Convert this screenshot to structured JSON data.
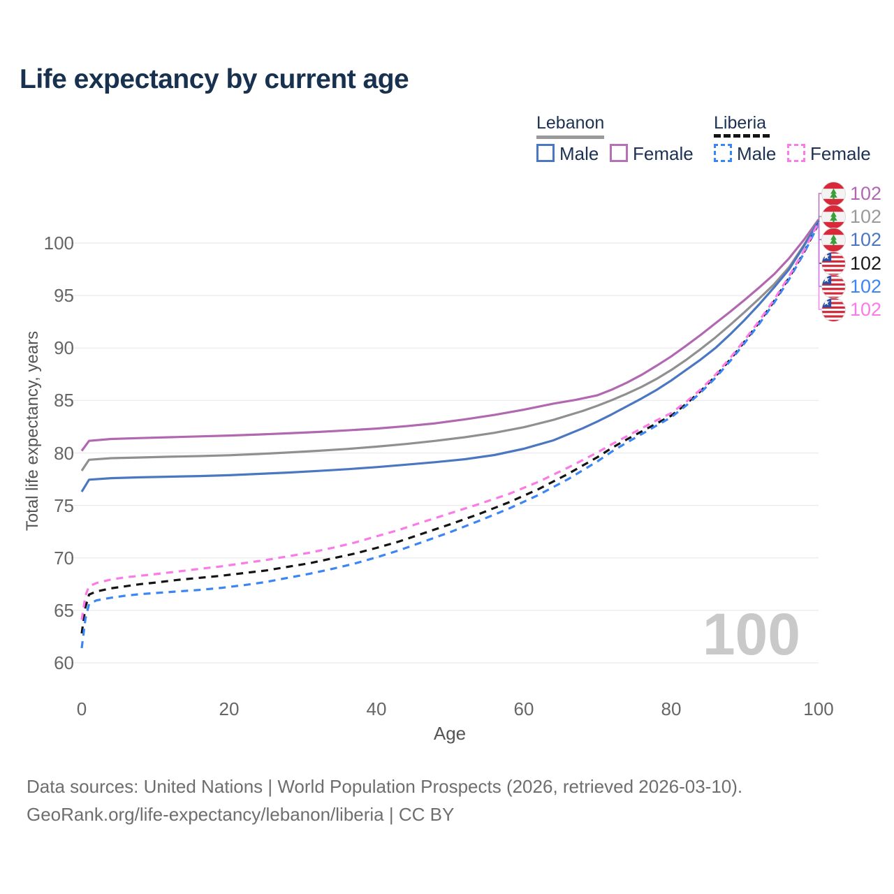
{
  "title": "Life expectancy by current age",
  "legend": {
    "groups": [
      {
        "country": "Lebanon",
        "line_style": "solid",
        "items": [
          {
            "label": "Male",
            "color": "#4a76c2"
          },
          {
            "label": "Female",
            "color": "#b671b6"
          }
        ]
      },
      {
        "country": "Liberia",
        "line_style": "dashed",
        "items": [
          {
            "label": "Male",
            "color": "#3c85f4"
          },
          {
            "label": "Female",
            "color": "#fb7ae8"
          }
        ]
      }
    ]
  },
  "end_labels": [
    {
      "series": "Lebanon Female",
      "flag": "lebanon",
      "value": "102",
      "color": "#b168b1"
    },
    {
      "series": "Lebanon Both sexes",
      "flag": "lebanon",
      "value": "102",
      "color": "#9a9a9a"
    },
    {
      "series": "Lebanon Male",
      "flag": "lebanon",
      "value": "102",
      "color": "#4a76c2"
    },
    {
      "series": "Liberia Both sexes",
      "flag": "liberia",
      "value": "102",
      "color": "#1a1a1a"
    },
    {
      "series": "Liberia Male",
      "flag": "liberia",
      "value": "102",
      "color": "#3c85f4"
    },
    {
      "series": "Liberia Female",
      "flag": "liberia",
      "value": "102",
      "color": "#fb7ae8"
    }
  ],
  "watermark": "100",
  "footer": {
    "line1": "Data sources: United Nations | World Population Prospects (2026, retrieved 2026-03-10).",
    "line2": "GeoRank.org/life-expectancy/lebanon/liberia | CC BY"
  },
  "chart_data": {
    "type": "line",
    "title": "Life expectancy by current age",
    "xlabel": "Age",
    "ylabel": "Total life expectancy, years",
    "xlim": [
      0,
      100
    ],
    "ylim": [
      60,
      102.5
    ],
    "xticks": [
      0,
      20,
      40,
      60,
      80,
      100
    ],
    "yticks": [
      100,
      95,
      90,
      85,
      80,
      75,
      70,
      65,
      60
    ],
    "grid": "horizontal",
    "gridline_color": "#ebebeb",
    "series": [
      {
        "id": "lebanon-female",
        "name": "Lebanon Female",
        "country": "Lebanon",
        "sex": "Female",
        "color": "#b168b1",
        "dashed": false,
        "end_value": 102,
        "points": [
          [
            0,
            80.2
          ],
          [
            1,
            81.15
          ],
          [
            4,
            81.33
          ],
          [
            8,
            81.42
          ],
          [
            12,
            81.5
          ],
          [
            16,
            81.58
          ],
          [
            20,
            81.66
          ],
          [
            24,
            81.76
          ],
          [
            28,
            81.87
          ],
          [
            32,
            82.0
          ],
          [
            36,
            82.15
          ],
          [
            40,
            82.32
          ],
          [
            44,
            82.55
          ],
          [
            48,
            82.82
          ],
          [
            52,
            83.2
          ],
          [
            56,
            83.62
          ],
          [
            60,
            84.12
          ],
          [
            64,
            84.7
          ],
          [
            67,
            85.05
          ],
          [
            70,
            85.5
          ],
          [
            72,
            86.05
          ],
          [
            74,
            86.7
          ],
          [
            76,
            87.45
          ],
          [
            78,
            88.3
          ],
          [
            80,
            89.2
          ],
          [
            82,
            90.2
          ],
          [
            84,
            91.25
          ],
          [
            86,
            92.35
          ],
          [
            88,
            93.45
          ],
          [
            90,
            94.6
          ],
          [
            92,
            95.8
          ],
          [
            94,
            97.05
          ],
          [
            96,
            98.55
          ],
          [
            98,
            100.3
          ],
          [
            100,
            102.25
          ]
        ]
      },
      {
        "id": "lebanon-both",
        "name": "Lebanon Both sexes",
        "country": "Lebanon",
        "sex": "Both",
        "color": "#909090",
        "dashed": false,
        "end_value": 102,
        "points": [
          [
            0,
            78.3
          ],
          [
            1,
            79.35
          ],
          [
            4,
            79.5
          ],
          [
            8,
            79.57
          ],
          [
            12,
            79.64
          ],
          [
            16,
            79.7
          ],
          [
            20,
            79.78
          ],
          [
            24,
            79.9
          ],
          [
            28,
            80.04
          ],
          [
            32,
            80.2
          ],
          [
            36,
            80.38
          ],
          [
            40,
            80.6
          ],
          [
            44,
            80.85
          ],
          [
            48,
            81.15
          ],
          [
            52,
            81.5
          ],
          [
            56,
            81.92
          ],
          [
            60,
            82.45
          ],
          [
            64,
            83.15
          ],
          [
            68,
            84.0
          ],
          [
            70,
            84.5
          ],
          [
            72,
            85.05
          ],
          [
            74,
            85.65
          ],
          [
            76,
            86.3
          ],
          [
            78,
            87.05
          ],
          [
            80,
            87.9
          ],
          [
            82,
            88.85
          ],
          [
            84,
            89.9
          ],
          [
            86,
            91.0
          ],
          [
            88,
            92.2
          ],
          [
            90,
            93.45
          ],
          [
            92,
            94.75
          ],
          [
            94,
            96.1
          ],
          [
            96,
            97.7
          ],
          [
            98,
            99.8
          ],
          [
            100,
            102.15
          ]
        ]
      },
      {
        "id": "lebanon-male",
        "name": "Lebanon Male",
        "country": "Lebanon",
        "sex": "Male",
        "color": "#4a76c2",
        "dashed": false,
        "end_value": 102,
        "points": [
          [
            0,
            76.3
          ],
          [
            1,
            77.45
          ],
          [
            4,
            77.6
          ],
          [
            8,
            77.68
          ],
          [
            12,
            77.74
          ],
          [
            16,
            77.8
          ],
          [
            20,
            77.88
          ],
          [
            24,
            78.0
          ],
          [
            28,
            78.13
          ],
          [
            32,
            78.28
          ],
          [
            36,
            78.45
          ],
          [
            40,
            78.65
          ],
          [
            44,
            78.88
          ],
          [
            48,
            79.12
          ],
          [
            52,
            79.4
          ],
          [
            56,
            79.8
          ],
          [
            60,
            80.4
          ],
          [
            64,
            81.2
          ],
          [
            68,
            82.35
          ],
          [
            70,
            83.0
          ],
          [
            72,
            83.7
          ],
          [
            74,
            84.45
          ],
          [
            76,
            85.2
          ],
          [
            78,
            86.0
          ],
          [
            80,
            86.9
          ],
          [
            82,
            87.9
          ],
          [
            84,
            88.9
          ],
          [
            86,
            90.0
          ],
          [
            88,
            91.3
          ],
          [
            90,
            92.7
          ],
          [
            92,
            94.2
          ],
          [
            94,
            95.8
          ],
          [
            96,
            97.5
          ],
          [
            98,
            99.7
          ],
          [
            100,
            102.1
          ]
        ]
      },
      {
        "id": "liberia-both",
        "name": "Liberia Both sexes",
        "country": "Liberia",
        "sex": "Both",
        "color": "#141414",
        "dashed": true,
        "end_value": 102,
        "points": [
          [
            0,
            62.8
          ],
          [
            0.5,
            65.3
          ],
          [
            1,
            66.5
          ],
          [
            2,
            66.8
          ],
          [
            4,
            67.1
          ],
          [
            6,
            67.3
          ],
          [
            8,
            67.5
          ],
          [
            10,
            67.65
          ],
          [
            13,
            67.9
          ],
          [
            16,
            68.1
          ],
          [
            19,
            68.3
          ],
          [
            22,
            68.55
          ],
          [
            25,
            68.8
          ],
          [
            28,
            69.15
          ],
          [
            31,
            69.5
          ],
          [
            34,
            69.95
          ],
          [
            37,
            70.4
          ],
          [
            40,
            70.95
          ],
          [
            43,
            71.55
          ],
          [
            46,
            72.25
          ],
          [
            50,
            73.2
          ],
          [
            54,
            74.2
          ],
          [
            58,
            75.3
          ],
          [
            62,
            76.55
          ],
          [
            66,
            78.0
          ],
          [
            70,
            79.6
          ],
          [
            72,
            80.5
          ],
          [
            74,
            81.3
          ],
          [
            76,
            82.05
          ],
          [
            78,
            82.8
          ],
          [
            80,
            83.55
          ],
          [
            82,
            84.65
          ],
          [
            84,
            85.9
          ],
          [
            86,
            87.3
          ],
          [
            88,
            88.9
          ],
          [
            90,
            90.65
          ],
          [
            92,
            92.5
          ],
          [
            94,
            94.5
          ],
          [
            96,
            96.7
          ],
          [
            98,
            99.1
          ],
          [
            100,
            101.85
          ]
        ]
      },
      {
        "id": "liberia-male",
        "name": "Liberia Male",
        "country": "Liberia",
        "sex": "Male",
        "color": "#3c85f4",
        "dashed": true,
        "end_value": 102,
        "points": [
          [
            0,
            61.4
          ],
          [
            0.5,
            64.2
          ],
          [
            1,
            65.6
          ],
          [
            2,
            65.95
          ],
          [
            4,
            66.2
          ],
          [
            6,
            66.4
          ],
          [
            8,
            66.55
          ],
          [
            10,
            66.65
          ],
          [
            13,
            66.8
          ],
          [
            16,
            66.95
          ],
          [
            19,
            67.15
          ],
          [
            22,
            67.4
          ],
          [
            25,
            67.7
          ],
          [
            28,
            68.1
          ],
          [
            31,
            68.5
          ],
          [
            34,
            68.95
          ],
          [
            37,
            69.45
          ],
          [
            40,
            70.05
          ],
          [
            43,
            70.7
          ],
          [
            46,
            71.45
          ],
          [
            50,
            72.45
          ],
          [
            54,
            73.55
          ],
          [
            58,
            74.7
          ],
          [
            62,
            76.0
          ],
          [
            66,
            77.5
          ],
          [
            70,
            79.2
          ],
          [
            72,
            80.15
          ],
          [
            74,
            81.0
          ],
          [
            76,
            81.8
          ],
          [
            78,
            82.6
          ],
          [
            80,
            83.4
          ],
          [
            82,
            84.5
          ],
          [
            84,
            85.75
          ],
          [
            86,
            87.15
          ],
          [
            88,
            88.75
          ],
          [
            90,
            90.5
          ],
          [
            92,
            92.35
          ],
          [
            94,
            94.35
          ],
          [
            96,
            96.55
          ],
          [
            98,
            99.0
          ],
          [
            100,
            101.8
          ]
        ]
      },
      {
        "id": "liberia-female",
        "name": "Liberia Female",
        "country": "Liberia",
        "sex": "Female",
        "color": "#fb7ae8",
        "dashed": true,
        "end_value": 102,
        "points": [
          [
            0,
            64.1
          ],
          [
            0.5,
            66.4
          ],
          [
            1,
            67.3
          ],
          [
            2,
            67.6
          ],
          [
            4,
            67.95
          ],
          [
            6,
            68.15
          ],
          [
            8,
            68.3
          ],
          [
            10,
            68.45
          ],
          [
            13,
            68.7
          ],
          [
            16,
            68.95
          ],
          [
            19,
            69.2
          ],
          [
            22,
            69.5
          ],
          [
            25,
            69.8
          ],
          [
            28,
            70.15
          ],
          [
            31,
            70.5
          ],
          [
            34,
            70.95
          ],
          [
            37,
            71.45
          ],
          [
            40,
            72.05
          ],
          [
            43,
            72.65
          ],
          [
            46,
            73.35
          ],
          [
            50,
            74.25
          ],
          [
            54,
            75.15
          ],
          [
            58,
            76.1
          ],
          [
            62,
            77.25
          ],
          [
            66,
            78.6
          ],
          [
            70,
            80.05
          ],
          [
            72,
            80.85
          ],
          [
            74,
            81.6
          ],
          [
            76,
            82.35
          ],
          [
            78,
            83.1
          ],
          [
            80,
            83.8
          ],
          [
            82,
            84.85
          ],
          [
            84,
            86.05
          ],
          [
            86,
            87.45
          ],
          [
            88,
            89.05
          ],
          [
            90,
            90.8
          ],
          [
            92,
            92.65
          ],
          [
            94,
            94.65
          ],
          [
            96,
            96.85
          ],
          [
            98,
            99.25
          ],
          [
            100,
            101.95
          ]
        ]
      }
    ]
  }
}
